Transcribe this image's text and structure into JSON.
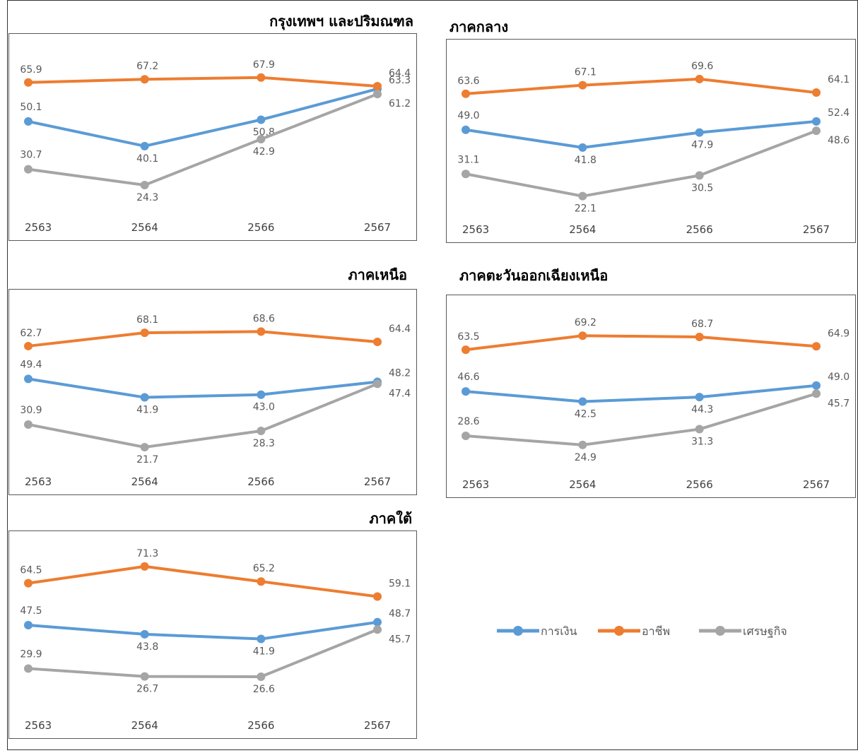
{
  "colors": {
    "การเงิน": "#5b9bd5",
    "อาชีพ": "#ed7d31",
    "เศรษฐกิจ": "#a5a5a5"
  },
  "legend": {
    "placement": "right-middle",
    "items": [
      "การเงิน",
      "อาชีพ",
      "เศรษฐกิจ"
    ]
  },
  "chart_data": [
    {
      "type": "line",
      "title": "กรุงเทพฯ และปริมณฑล",
      "categories": [
        "2563",
        "2564",
        "2566",
        "2567"
      ],
      "series": [
        {
          "name": "การเงิน",
          "values": [
            50.1,
            40.1,
            50.8,
            63.3
          ]
        },
        {
          "name": "อาชีพ",
          "values": [
            65.9,
            67.2,
            67.9,
            64.4
          ]
        },
        {
          "name": "เศรษฐกิจ",
          "values": [
            30.7,
            24.3,
            42.9,
            61.2
          ]
        }
      ]
    },
    {
      "type": "line",
      "title": "ภาคกลาง",
      "categories": [
        "2563",
        "2564",
        "2566",
        "2567"
      ],
      "series": [
        {
          "name": "การเงิน",
          "values": [
            49.0,
            41.8,
            47.9,
            52.4
          ]
        },
        {
          "name": "อาชีพ",
          "values": [
            63.6,
            67.1,
            69.6,
            64.1
          ]
        },
        {
          "name": "เศรษฐกิจ",
          "values": [
            31.1,
            22.1,
            30.5,
            48.6
          ]
        }
      ]
    },
    {
      "type": "line",
      "title": "ภาคเหนือ",
      "categories": [
        "2563",
        "2564",
        "2566",
        "2567"
      ],
      "series": [
        {
          "name": "การเงิน",
          "values": [
            49.4,
            41.9,
            43.0,
            48.2
          ]
        },
        {
          "name": "อาชีพ",
          "values": [
            62.7,
            68.1,
            68.6,
            64.4
          ]
        },
        {
          "name": "เศรษฐกิจ",
          "values": [
            30.9,
            21.7,
            28.3,
            47.4
          ]
        }
      ]
    },
    {
      "type": "line",
      "title": "ภาคตะวันออกเฉียงเหนือ",
      "categories": [
        "2563",
        "2564",
        "2566",
        "2567"
      ],
      "series": [
        {
          "name": "การเงิน",
          "values": [
            46.6,
            42.5,
            44.3,
            49.0
          ]
        },
        {
          "name": "อาชีพ",
          "values": [
            63.5,
            69.2,
            68.7,
            64.9
          ]
        },
        {
          "name": "เศรษฐกิจ",
          "values": [
            28.6,
            24.9,
            31.3,
            45.7
          ]
        }
      ]
    },
    {
      "type": "line",
      "title": "ภาคใต้",
      "categories": [
        "2563",
        "2564",
        "2566",
        "2567"
      ],
      "series": [
        {
          "name": "การเงิน",
          "values": [
            47.5,
            43.8,
            41.9,
            48.7
          ]
        },
        {
          "name": "อาชีพ",
          "values": [
            64.5,
            71.3,
            65.2,
            59.1
          ]
        },
        {
          "name": "เศรษฐกิจ",
          "values": [
            29.9,
            26.7,
            26.6,
            45.7
          ]
        }
      ]
    }
  ]
}
